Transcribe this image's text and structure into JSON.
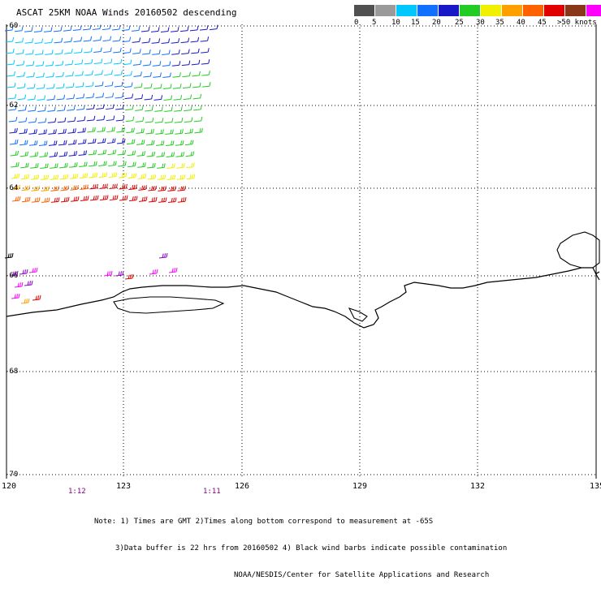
{
  "title": "ASCAT 25KM NOAA Winds 20160502 descending",
  "legend": {
    "labels": [
      "0",
      "5",
      "10",
      "15",
      "20",
      "25",
      "30",
      "35",
      "40",
      "45",
      ">50 knots"
    ],
    "colors": [
      "#505050",
      "#9a9a9a",
      "#00c8ff",
      "#1070ff",
      "#1818c8",
      "#22cc22",
      "#f0f000",
      "#ffa000",
      "#ff6000",
      "#e00000",
      "#883818",
      "#ff00ff",
      "#8a00c8"
    ]
  },
  "lat_labels": [
    "-60",
    "-62",
    "-64",
    "-66",
    "-68",
    "-70"
  ],
  "lon_labels": [
    "120",
    "123",
    "126",
    "129",
    "132",
    "135"
  ],
  "pass_times": [
    "1:12",
    "1:11"
  ],
  "notes": [
    "Note: 1) Times are GMT 2)Times along bottom correspond to measurement at -65S",
    "3)Data buffer is 22 hrs from 20160502 4) Black wind barbs indicate possible contamination",
    "NOAA/NESDIS/Center for Satellite Applications and Research"
  ]
}
